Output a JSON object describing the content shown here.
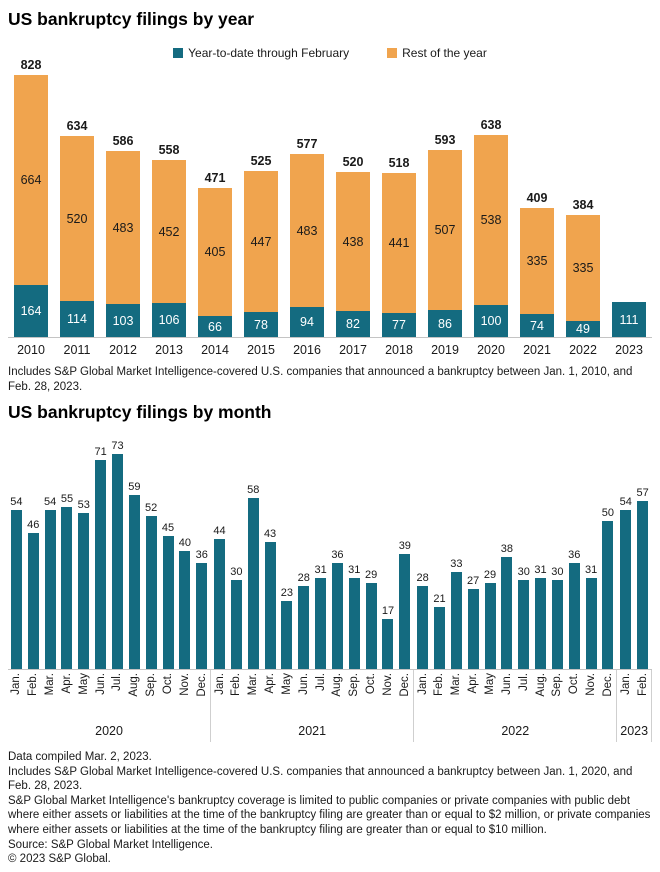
{
  "page": {
    "title_year_chart": "US bankruptcy filings by year",
    "title_month_chart": "US bankruptcy filings by month",
    "footnote_year_chart": "Includes S&P Global Market Intelligence-covered U.S. companies that announced a bankruptcy between Jan. 1, 2010, and Feb. 28, 2023.",
    "footer_lines": [
      "Data compiled Mar. 2, 2023.",
      "Includes S&P Global Market Intelligence-covered U.S. companies that announced a bankruptcy between Jan. 1, 2020, and Feb. 28, 2023.",
      "S&P Global Market Intelligence's bankruptcy coverage is limited to public companies or private companies with public debt where either assets or liabilities at the time of the bankruptcy filing are greater than or equal to $2 million, or private companies where either assets or liabilities at the time of the bankruptcy filing are greater than or equal to $10 million.",
      "Source: S&P Global Market Intelligence.",
      "© 2023 S&P Global."
    ]
  },
  "colors": {
    "teal": "#146B80",
    "orange": "#F0A44E",
    "axis_line": "#C4C4C4",
    "separator": "#CFCFCF",
    "text": "#1A1A1A",
    "bar_label_light": "#FFFFFF"
  },
  "legend": {
    "items": [
      {
        "label": "Year-to-date through February",
        "color_key": "teal"
      },
      {
        "label": "Rest of the year",
        "color_key": "orange"
      }
    ]
  },
  "chart_data": [
    {
      "type": "bar",
      "stacked": true,
      "title": "US bankruptcy filings by year",
      "categories": [
        "2010",
        "2011",
        "2012",
        "2013",
        "2014",
        "2015",
        "2016",
        "2017",
        "2018",
        "2019",
        "2020",
        "2021",
        "2022",
        "2023"
      ],
      "series": [
        {
          "name": "Year-to-date through February",
          "color": "#146B80",
          "values": [
            164,
            114,
            103,
            106,
            66,
            78,
            94,
            82,
            77,
            86,
            100,
            74,
            49,
            111
          ]
        },
        {
          "name": "Rest of the year",
          "color": "#F0A44E",
          "values": [
            664,
            520,
            483,
            452,
            405,
            447,
            483,
            438,
            441,
            507,
            538,
            335,
            335,
            null
          ]
        }
      ],
      "totals": [
        828,
        634,
        586,
        558,
        471,
        525,
        577,
        520,
        518,
        593,
        638,
        409,
        384,
        null
      ],
      "legend_position": "top",
      "grid": false,
      "y_axis_visible": false,
      "data_labels": "all segments and totals"
    },
    {
      "type": "bar",
      "title": "US bankruptcy filings by month",
      "bar_color": "#146B80",
      "grid": false,
      "y_axis_visible": false,
      "data_labels": "above each bar",
      "groups": [
        {
          "year": "2020",
          "months": [
            "Jan.",
            "Feb.",
            "Mar.",
            "Apr.",
            "May",
            "Jun.",
            "Jul.",
            "Aug.",
            "Sep.",
            "Oct.",
            "Nov.",
            "Dec."
          ],
          "values": [
            54,
            46,
            54,
            55,
            53,
            71,
            73,
            59,
            52,
            45,
            40,
            36
          ]
        },
        {
          "year": "2021",
          "months": [
            "Jan.",
            "Feb.",
            "Mar.",
            "Apr.",
            "May",
            "Jun.",
            "Jul.",
            "Aug.",
            "Sep.",
            "Oct.",
            "Nov.",
            "Dec."
          ],
          "values": [
            44,
            30,
            58,
            43,
            23,
            28,
            31,
            36,
            31,
            29,
            17,
            39
          ]
        },
        {
          "year": "2022",
          "months": [
            "Jan.",
            "Feb.",
            "Mar.",
            "Apr.",
            "May",
            "Jun.",
            "Jul.",
            "Aug.",
            "Sep.",
            "Oct.",
            "Nov.",
            "Dec."
          ],
          "values": [
            28,
            21,
            33,
            27,
            29,
            38,
            30,
            31,
            30,
            36,
            31,
            50
          ]
        },
        {
          "year": "2023",
          "months": [
            "Jan.",
            "Feb."
          ],
          "values": [
            54,
            57
          ]
        }
      ]
    }
  ]
}
